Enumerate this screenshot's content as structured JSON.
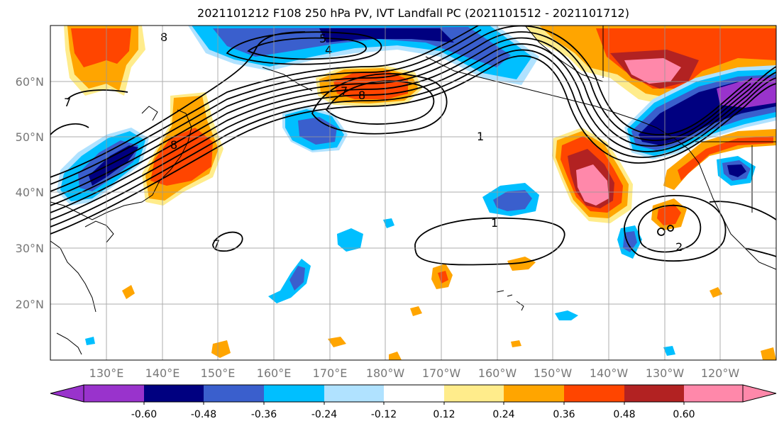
{
  "title": "2021101212 F108 250 hPa PV, IVT Landfall PC (2021101512 - 2021101712)",
  "map": {
    "lat_labels": [
      "60°N",
      "50°N",
      "40°N",
      "30°N",
      "20°N"
    ],
    "lon_labels": [
      "130°E",
      "140°E",
      "150°E",
      "160°E",
      "170°E",
      "180°W",
      "170°W",
      "160°W",
      "150°W",
      "140°W",
      "130°W",
      "120°W"
    ],
    "contour_labels": [
      "8",
      "5",
      "4",
      "8",
      "7",
      "1",
      "7",
      "1",
      "2",
      "7",
      "8"
    ],
    "colors": {
      "neg_extreme": "#9933cc",
      "neg_060": "#000080",
      "neg_048": "#3a5fcd",
      "neg_036": "#00bfff",
      "neg_024": "#b0e2ff",
      "neutral": "#ffffff",
      "pos_012": "#ffec8b",
      "pos_024": "#ffa500",
      "pos_036": "#ff4500",
      "pos_048": "#b22222",
      "pos_extreme": "#ff88aa"
    }
  },
  "colorbar": {
    "tick_labels": [
      "-0.60",
      "-0.48",
      "-0.36",
      "-0.24",
      "-0.12",
      "0.12",
      "0.24",
      "0.36",
      "0.48",
      "0.60"
    ],
    "segment_colors": [
      "#9933cc",
      "#000080",
      "#3a5fcd",
      "#00bfff",
      "#b0e2ff",
      "#ffffff",
      "#ffec8b",
      "#ffa500",
      "#ff4500",
      "#b22222",
      "#ff88aa"
    ]
  }
}
